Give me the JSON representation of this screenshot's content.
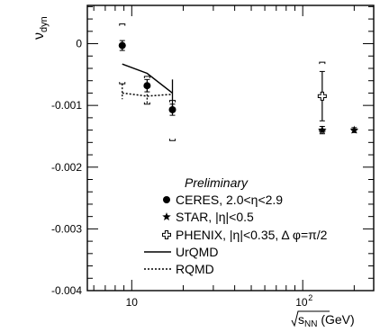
{
  "chart_data": {
    "type": "scatter",
    "title": "",
    "xlabel": "√s_NN (GeV)",
    "ylabel": "ν_dyn",
    "xscale": "log",
    "xlim": [
      5.5,
      260
    ],
    "ylim": [
      -0.004,
      0.00062
    ],
    "x_ticks": [
      {
        "value": 10,
        "label": "10"
      },
      {
        "value": 100,
        "label": "10²"
      }
    ],
    "y_ticks": [
      {
        "value": 0,
        "label": "0"
      },
      {
        "value": -0.001,
        "label": "-0.001"
      },
      {
        "value": -0.002,
        "label": "-0.002"
      },
      {
        "value": -0.003,
        "label": "-0.003"
      },
      {
        "value": -0.004,
        "label": "-0.004"
      }
    ],
    "annotation": "Preliminary",
    "legend_position": "lower-center",
    "series": [
      {
        "name": "CERES, 2.0<η<2.9",
        "marker": "circle",
        "points": [
          {
            "x": 8.8,
            "y": -3e-05,
            "err": 8e-05,
            "sys_low": -0.00065,
            "sys_high": 0.00032
          },
          {
            "x": 12.3,
            "y": -0.00068,
            "err": 0.0001,
            "sys_low": -0.00098,
            "sys_high": -0.00053
          },
          {
            "x": 17.3,
            "y": -0.00107,
            "err": 9e-05,
            "sys_low": -0.00157,
            "sys_high": -0.00092
          }
        ]
      },
      {
        "name": "STAR, |η|<0.5",
        "marker": "star",
        "points": [
          {
            "x": 130,
            "y": -0.0014,
            "err": 6e-05
          },
          {
            "x": 200,
            "y": -0.0014,
            "err": 4e-05,
            "xerr": [
              192,
              208
            ]
          }
        ]
      },
      {
        "name": "PHENIX, |η|<0.35, Δ φ=π/2",
        "marker": "open-cross",
        "points": [
          {
            "x": 130,
            "y": -0.00085,
            "err": 0.0004,
            "sys_low": -0.00142,
            "sys_high": -0.0003
          }
        ]
      },
      {
        "name": "UrQMD",
        "style": "solid",
        "points": [
          {
            "x": 8.8,
            "y": -0.00033
          },
          {
            "x": 12.3,
            "y": -0.00048
          },
          {
            "x": 17.3,
            "y": -0.0008
          }
        ],
        "err_high": [
          -0.00033,
          -0.00048,
          -0.00058
        ],
        "err_low": [
          -0.00033,
          -0.00048,
          -0.00105
        ]
      },
      {
        "name": "RQMD",
        "style": "dotted",
        "points": [
          {
            "x": 8.8,
            "y": -0.0008
          },
          {
            "x": 12.3,
            "y": -0.00085
          },
          {
            "x": 17.3,
            "y": -0.00082
          }
        ],
        "err_high": [
          -0.00065,
          -0.0007,
          -0.00082
        ],
        "err_low": [
          -0.0009,
          -0.00098,
          -0.00082
        ]
      }
    ]
  }
}
